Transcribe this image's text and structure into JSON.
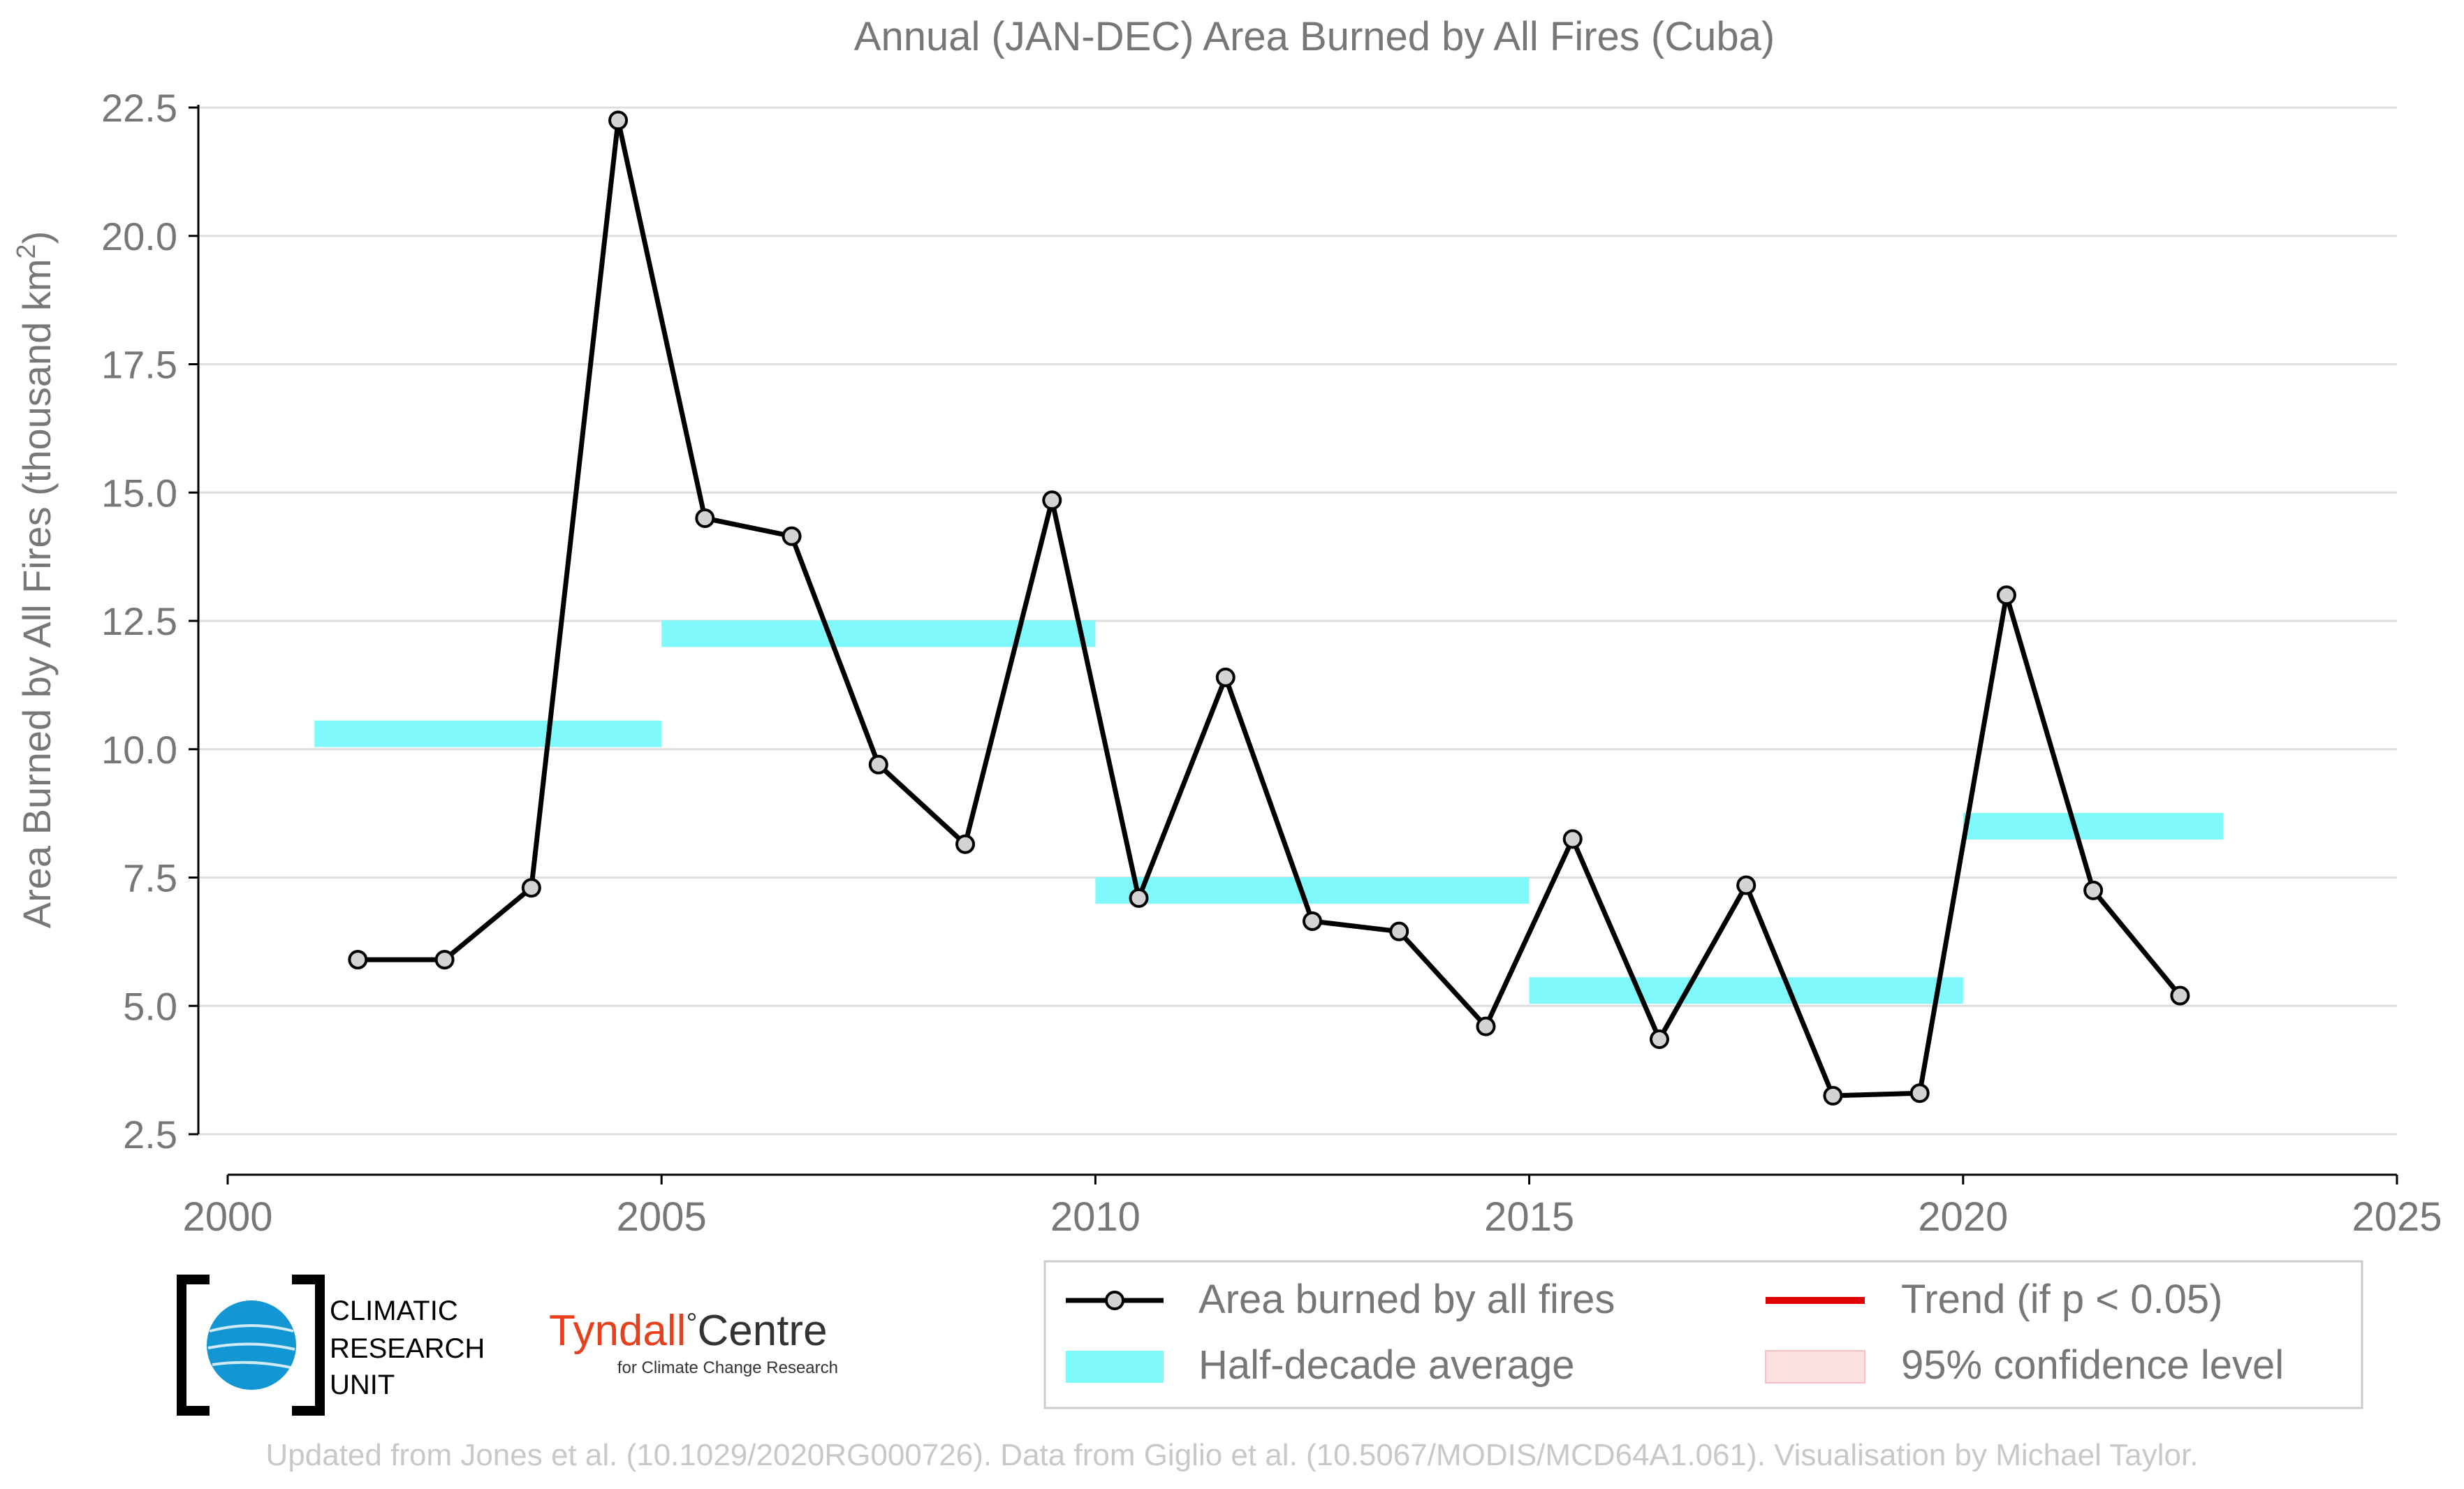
{
  "chart_data": {
    "type": "line",
    "title": "Annual (JAN-DEC) Area Burned by All Fires (Cuba)",
    "ylabel_main": "Area Burned by All Fires (thousand km",
    "ylabel_sup": "2",
    "ylabel_close": ")",
    "xlabel": "",
    "xlim": [
      2000,
      2025
    ],
    "ylim": [
      2.5,
      22.5
    ],
    "x_ticks": [
      "2000",
      "2005",
      "2010",
      "2015",
      "2020",
      "2025"
    ],
    "y_ticks": [
      "2.5",
      "5.0",
      "7.5",
      "10.0",
      "12.5",
      "15.0",
      "17.5",
      "20.0",
      "22.5"
    ],
    "grid": "horizontal",
    "series": [
      {
        "name": "Area burned by all fires",
        "color": "#000000",
        "marker_fill": "#d3d3d3",
        "x": [
          2001.5,
          2002.5,
          2003.5,
          2004.5,
          2005.5,
          2006.5,
          2007.5,
          2008.5,
          2009.5,
          2010.5,
          2011.5,
          2012.5,
          2013.5,
          2014.5,
          2015.5,
          2016.5,
          2017.5,
          2018.5,
          2019.5,
          2020.5,
          2021.5,
          2022.5
        ],
        "values": [
          5.9,
          5.9,
          7.3,
          22.25,
          14.5,
          14.15,
          9.7,
          8.15,
          14.85,
          7.1,
          11.4,
          6.65,
          6.45,
          4.6,
          8.25,
          4.35,
          7.35,
          3.25,
          3.3,
          13.0,
          7.25,
          5.2
        ]
      },
      {
        "name": "Half-decade average",
        "color": "#7ff9fb",
        "segments": [
          {
            "x0": 2001,
            "x1": 2005,
            "y": 10.3
          },
          {
            "x0": 2005,
            "x1": 2010,
            "y": 12.25
          },
          {
            "x0": 2010,
            "x1": 2015,
            "y": 7.25
          },
          {
            "x0": 2015,
            "x1": 2020,
            "y": 5.3
          },
          {
            "x0": 2020,
            "x1": 2023,
            "y": 8.5
          }
        ]
      }
    ],
    "legend": {
      "placement": "bottom-right",
      "items": [
        {
          "label": "Area burned by all fires",
          "kind": "line-marker",
          "color": "#000000"
        },
        {
          "label": "Trend (if p < 0.05)",
          "kind": "line",
          "color": "#e00000"
        },
        {
          "label": "Half-decade average",
          "kind": "band",
          "color": "#7ff9fb"
        },
        {
          "label": "95% confidence level",
          "kind": "band",
          "color": "#fde0e2"
        }
      ]
    }
  },
  "logos": {
    "cru": {
      "line1": "CLIMATIC",
      "line2": "RESEARCH",
      "line3": "UNIT"
    },
    "tyndall": {
      "name_part1": "Tyndall",
      "degree": "°",
      "name_part2": "Centre",
      "tagline": "for Climate Change Research",
      "accent_color": "#e8401c"
    }
  },
  "footer": "Updated from Jones et al. (10.1029/2020RG000726). Data from Giglio et al. (10.5067/MODIS/MCD64A1.061). Visualisation by Michael Taylor.",
  "colors": {
    "text_gray": "#777777",
    "grid": "#dedede",
    "footer": "#c8c8c8",
    "cru_blue": "#1296d4"
  }
}
